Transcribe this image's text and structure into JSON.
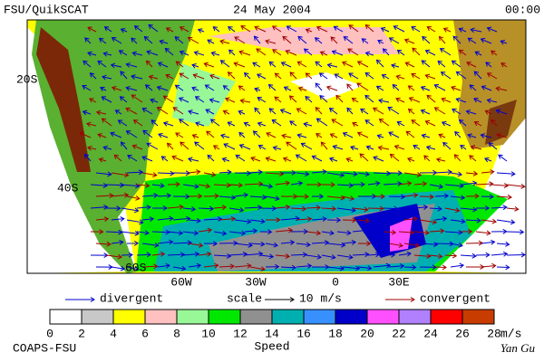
{
  "header": {
    "left": "FSU/QuikSCAT",
    "center": "24 May 2004",
    "right": "00:00"
  },
  "map": {
    "lat_labels": [
      "20S",
      "40S",
      "60S"
    ],
    "lon_labels": [
      "60W",
      "30W",
      "0",
      "30E"
    ]
  },
  "legend": {
    "divergent": "divergent",
    "scale": "scale",
    "scale_value": "10 m/s",
    "convergent": "convergent",
    "divergent_color": "#0000d0",
    "convergent_color": "#a00000"
  },
  "colorbar": {
    "ticks": [
      0,
      2,
      4,
      6,
      8,
      10,
      12,
      14,
      16,
      18,
      20,
      22,
      24,
      26,
      28
    ],
    "unit": "m/s",
    "title": "Speed",
    "colors": [
      "#ffffff",
      "#c8c8c8",
      "#ffff00",
      "#ffc0c0",
      "#98f898",
      "#00e800",
      "#909090",
      "#00b0b0",
      "#3890ff",
      "#0000c8",
      "#ff50ff",
      "#b080ff",
      "#ff0000",
      "#c83c00",
      "#000000"
    ]
  },
  "footer": {
    "left": "COAPS-FSU",
    "right": "Yan Gu"
  }
}
